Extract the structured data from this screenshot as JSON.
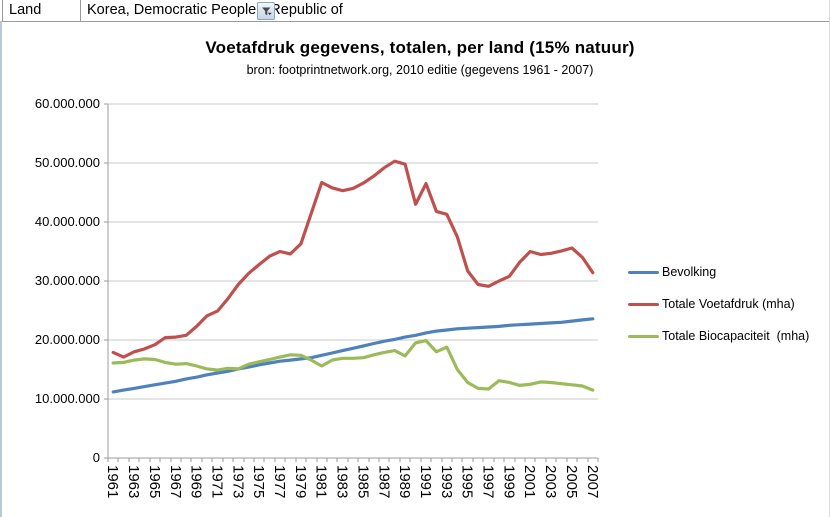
{
  "header": {
    "label_cell": "Land",
    "value_cell": "Korea, Democratic People's Republic of",
    "filter_icon": "autofilter-funnel-icon"
  },
  "chart_data": {
    "type": "line",
    "title": "Voetafdruk gegevens, totalen, per land (15% natuur)",
    "subtitle": "bron: footprintnetwork.org, 2010 editie (gegevens 1961 - 2007)",
    "xlabel": "",
    "ylabel": "",
    "ylim": [
      0,
      60000000
    ],
    "grid": true,
    "legend_position": "right",
    "grid_color": "#c9c9c9",
    "axis_color": "#9b9b9b",
    "x": [
      1961,
      1962,
      1963,
      1964,
      1965,
      1966,
      1967,
      1968,
      1969,
      1970,
      1971,
      1972,
      1973,
      1974,
      1975,
      1976,
      1977,
      1978,
      1979,
      1980,
      1981,
      1982,
      1983,
      1984,
      1985,
      1986,
      1987,
      1988,
      1989,
      1990,
      1991,
      1992,
      1993,
      1994,
      1995,
      1996,
      1997,
      1998,
      1999,
      2000,
      2001,
      2002,
      2003,
      2004,
      2005,
      2006,
      2007
    ],
    "x_tick_labels": [
      "1961",
      "1963",
      "1965",
      "1967",
      "1969",
      "1971",
      "1973",
      "1975",
      "1977",
      "1979",
      "1981",
      "1983",
      "1985",
      "1987",
      "1989",
      "1991",
      "1993",
      "1995",
      "1997",
      "1999",
      "2001",
      "2003",
      "2005",
      "2007"
    ],
    "y_tick_labels": [
      "0",
      "10.000.000",
      "20.000.000",
      "30.000.000",
      "40.000.000",
      "50.000.000",
      "60.000.000"
    ],
    "series": [
      {
        "name": "Bevolking",
        "color": "#4F81BD",
        "values": [
          11200000,
          11500000,
          11800000,
          12100000,
          12400000,
          12700000,
          13000000,
          13400000,
          13700000,
          14100000,
          14400000,
          14700000,
          15100000,
          15400000,
          15800000,
          16100000,
          16400000,
          16600000,
          16800000,
          17000000,
          17400000,
          17800000,
          18200000,
          18600000,
          19000000,
          19400000,
          19800000,
          20100000,
          20500000,
          20800000,
          21200000,
          21500000,
          21700000,
          21900000,
          22000000,
          22100000,
          22200000,
          22300000,
          22500000,
          22600000,
          22700000,
          22800000,
          22900000,
          23000000,
          23200000,
          23400000,
          23600000
        ]
      },
      {
        "name": "Totale Voetafdruk (mha)",
        "color": "#C0504D",
        "values": [
          17900000,
          17100000,
          18000000,
          18500000,
          19200000,
          20400000,
          20500000,
          20800000,
          22300000,
          24100000,
          24900000,
          27000000,
          29400000,
          31300000,
          32800000,
          34200000,
          35000000,
          34600000,
          36300000,
          41500000,
          46700000,
          45800000,
          45300000,
          45700000,
          46600000,
          47800000,
          49200000,
          50300000,
          49800000,
          43000000,
          46500000,
          41800000,
          41300000,
          37500000,
          31700000,
          29400000,
          29100000,
          30000000,
          30800000,
          33200000,
          35000000,
          34500000,
          34700000,
          35100000,
          35600000,
          34000000,
          31400000
        ]
      },
      {
        "name": "Totale Biocapaciteit  (mha)",
        "color": "#9BBB59",
        "values": [
          16100000,
          16200000,
          16600000,
          16800000,
          16700000,
          16200000,
          15900000,
          16000000,
          15600000,
          15100000,
          14900000,
          15200000,
          15100000,
          15900000,
          16300000,
          16700000,
          17100000,
          17500000,
          17400000,
          16600000,
          15600000,
          16600000,
          16900000,
          16900000,
          17000000,
          17500000,
          17900000,
          18200000,
          17300000,
          19500000,
          19900000,
          18000000,
          18800000,
          15000000,
          12800000,
          11800000,
          11700000,
          13100000,
          12800000,
          12300000,
          12500000,
          12900000,
          12800000,
          12600000,
          12400000,
          12200000,
          11500000
        ]
      }
    ]
  }
}
